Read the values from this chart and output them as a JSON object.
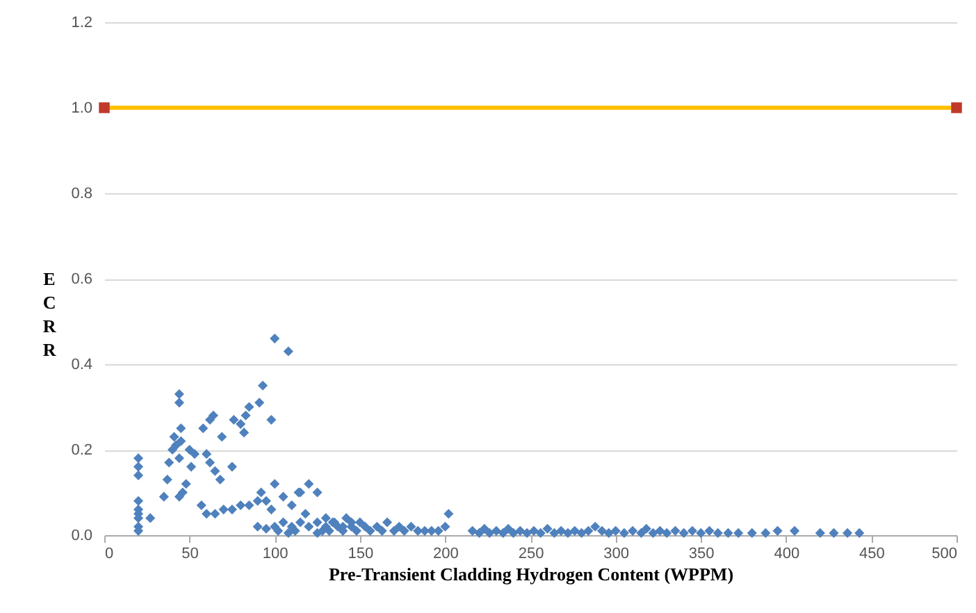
{
  "chart_data": {
    "type": "scatter",
    "xlabel": "Pre-Transient Cladding Hydrogen Content (WPPM)",
    "ylabel": "ECRR",
    "xlim": [
      0,
      500
    ],
    "xticks": [
      0,
      50,
      100,
      150,
      200,
      250,
      300,
      350,
      400,
      450,
      500
    ],
    "ylim": [
      0,
      1.2
    ],
    "yticks": [
      {
        "value": 0,
        "label": "0.0"
      },
      0.2,
      0.4,
      0.6,
      0.8,
      {
        "value": 1,
        "label": "1.0"
      },
      1.2
    ],
    "grid": "y",
    "series": [
      {
        "color": "#4f81bd",
        "marker": "diamond",
        "x": [
          20,
          20,
          20,
          20,
          20,
          20,
          20,
          20,
          20,
          27,
          35,
          37,
          38,
          41,
          44,
          44,
          45,
          45,
          42,
          40,
          44,
          44,
          46,
          48,
          51,
          50,
          53,
          58,
          64,
          62,
          60,
          62,
          65,
          68,
          57,
          60,
          65,
          70,
          75,
          80,
          85,
          90,
          69,
          75,
          76,
          80,
          82,
          83,
          85,
          91,
          93,
          98,
          100,
          108,
          92,
          95,
          100,
          98,
          105,
          110,
          115,
          120,
          125,
          118,
          100,
          105,
          110,
          115,
          90,
          95,
          120,
          125,
          130,
          130,
          135,
          140,
          145,
          114,
          102,
          108,
          112,
          125,
          128,
          132,
          134,
          137,
          140,
          142,
          145,
          148,
          150,
          153,
          156,
          160,
          163,
          166,
          170,
          173,
          176,
          180,
          184,
          188,
          192,
          196,
          200,
          202,
          216,
          220,
          223,
          226,
          230,
          234,
          237,
          240,
          244,
          248,
          252,
          256,
          260,
          264,
          268,
          272,
          276,
          280,
          284,
          288,
          292,
          296,
          300,
          305,
          310,
          315,
          318,
          322,
          326,
          330,
          335,
          340,
          345,
          350,
          355,
          360,
          366,
          372,
          380,
          388,
          395,
          405,
          420,
          428,
          436,
          443
        ],
        "values": [
          0.18,
          0.16,
          0.14,
          0.08,
          0.06,
          0.05,
          0.04,
          0.02,
          0.01,
          0.04,
          0.09,
          0.13,
          0.17,
          0.23,
          0.33,
          0.31,
          0.25,
          0.22,
          0.21,
          0.2,
          0.18,
          0.09,
          0.1,
          0.12,
          0.16,
          0.2,
          0.19,
          0.25,
          0.28,
          0.27,
          0.19,
          0.17,
          0.15,
          0.13,
          0.07,
          0.05,
          0.05,
          0.06,
          0.06,
          0.07,
          0.07,
          0.08,
          0.23,
          0.16,
          0.27,
          0.26,
          0.24,
          0.28,
          0.3,
          0.31,
          0.35,
          0.27,
          0.46,
          0.43,
          0.1,
          0.08,
          0.12,
          0.06,
          0.09,
          0.07,
          0.1,
          0.12,
          0.1,
          0.05,
          0.02,
          0.03,
          0.02,
          0.03,
          0.02,
          0.015,
          0.02,
          0.03,
          0.04,
          0.02,
          0.03,
          0.02,
          0.03,
          0.1,
          0.01,
          0.005,
          0.01,
          0.005,
          0.01,
          0.01,
          0.03,
          0.02,
          0.01,
          0.04,
          0.02,
          0.01,
          0.03,
          0.02,
          0.01,
          0.02,
          0.01,
          0.03,
          0.01,
          0.02,
          0.01,
          0.02,
          0.01,
          0.01,
          0.01,
          0.01,
          0.02,
          0.05,
          0.01,
          0.005,
          0.015,
          0.005,
          0.01,
          0.005,
          0.015,
          0.005,
          0.01,
          0.005,
          0.01,
          0.005,
          0.015,
          0.005,
          0.01,
          0.005,
          0.01,
          0.005,
          0.01,
          0.02,
          0.01,
          0.005,
          0.01,
          0.005,
          0.01,
          0.005,
          0.015,
          0.005,
          0.01,
          0.005,
          0.01,
          0.005,
          0.01,
          0.005,
          0.01,
          0.005,
          0.005,
          0.005,
          0.005,
          0.005,
          0.01,
          0.01,
          0.005,
          0.005,
          0.005,
          0.005
        ]
      },
      {
        "type": "line",
        "color": "#ffc000",
        "x": [
          0,
          500
        ],
        "values": [
          1,
          1
        ]
      },
      {
        "color": "#c0392b",
        "marker": "square",
        "x": [
          0,
          500
        ],
        "values": [
          1,
          1
        ]
      }
    ]
  }
}
